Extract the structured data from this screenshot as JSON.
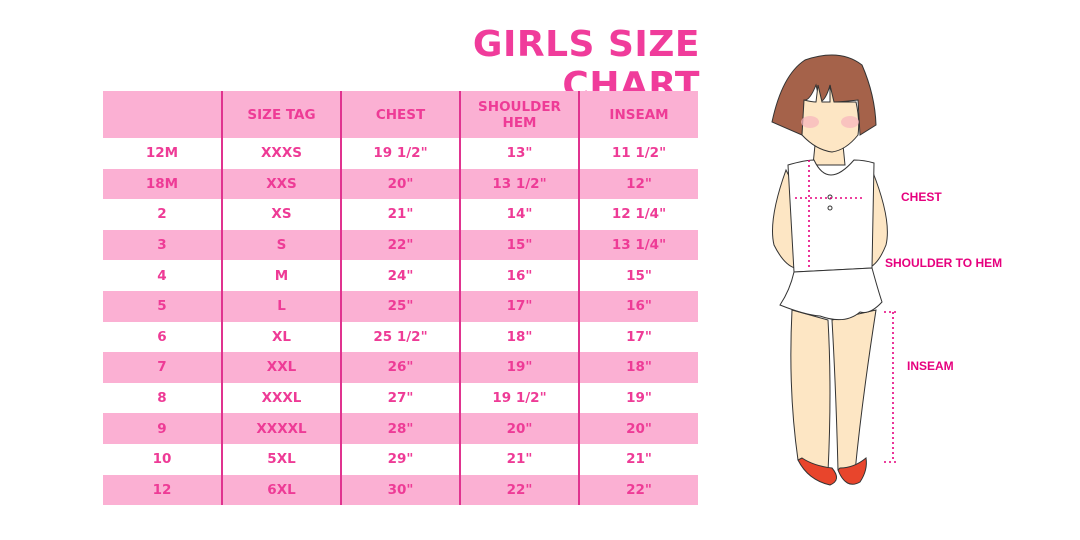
{
  "title": "GIRLS SIZE CHART",
  "table": {
    "headers": [
      "",
      "SIZE TAG",
      "CHEST",
      "SHOULDER HEM",
      "INSEAM"
    ],
    "rows": [
      [
        "12M",
        "XXXS",
        "19 1/2\"",
        "13\"",
        "11 1/2\""
      ],
      [
        "18M",
        "XXS",
        "20\"",
        "13 1/2\"",
        "12\""
      ],
      [
        "2",
        "XS",
        "21\"",
        "14\"",
        "12 1/4\""
      ],
      [
        "3",
        "S",
        "22\"",
        "15\"",
        "13 1/4\""
      ],
      [
        "4",
        "M",
        "24\"",
        "16\"",
        "15\""
      ],
      [
        "5",
        "L",
        "25\"",
        "17\"",
        "16\""
      ],
      [
        "6",
        "XL",
        "25 1/2\"",
        "18\"",
        "17\""
      ],
      [
        "7",
        "XXL",
        "26\"",
        "19\"",
        "18\""
      ],
      [
        "8",
        "XXXL",
        "27\"",
        "19 1/2\"",
        "19\""
      ],
      [
        "9",
        "XXXXL",
        "28\"",
        "20\"",
        "20\""
      ],
      [
        "10",
        "5XL",
        "29\"",
        "21\"",
        "21\""
      ],
      [
        "12",
        "6XL",
        "30\"",
        "22\"",
        "22\""
      ]
    ]
  },
  "figure": {
    "labels": {
      "chest": "CHEST",
      "shoulder_to_hem": "SHOULDER TO HEM",
      "inseam": "INSEAM"
    }
  },
  "colors": {
    "accent": "#f03c9b",
    "row_fill": "#fbb0d3",
    "divider": "#e0338f"
  }
}
